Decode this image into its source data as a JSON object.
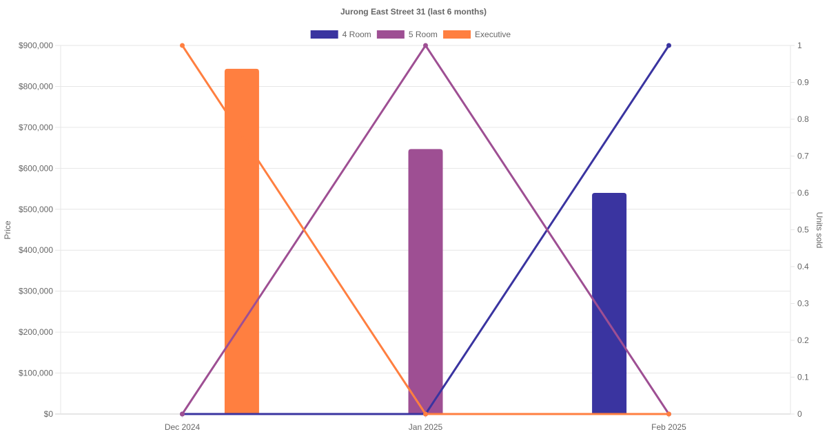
{
  "chart_data": {
    "type": "bar",
    "title": "Jurong East Street 31 (last 6 months)",
    "categories": [
      "Dec 2024",
      "Jan 2025",
      "Feb 2025"
    ],
    "y_left": {
      "label": "Price",
      "range": [
        0,
        900000
      ],
      "ticks": [
        "$0",
        "$100,000",
        "$200,000",
        "$300,000",
        "$400,000",
        "$500,000",
        "$600,000",
        "$700,000",
        "$800,000",
        "$900,000"
      ]
    },
    "y_right": {
      "label": "Units sold",
      "range": [
        0,
        1
      ],
      "ticks": [
        "0",
        "0.1",
        "0.2",
        "0.3",
        "0.4",
        "0.5",
        "0.6",
        "0.7",
        "0.8",
        "0.9",
        "1"
      ]
    },
    "legend_placement": "top-center",
    "grid": true,
    "series": [
      {
        "name": "4 Room",
        "color": "#3a34a0",
        "prices": [
          null,
          null,
          540000
        ],
        "units_sold": [
          0,
          0,
          1
        ]
      },
      {
        "name": "5 Room",
        "color": "#9e4f93",
        "prices": [
          null,
          647000,
          null
        ],
        "units_sold": [
          0,
          1,
          0
        ]
      },
      {
        "name": "Executive",
        "color": "#ff7f40",
        "prices": [
          843000,
          null,
          null
        ],
        "units_sold": [
          1,
          0,
          0
        ]
      }
    ]
  }
}
